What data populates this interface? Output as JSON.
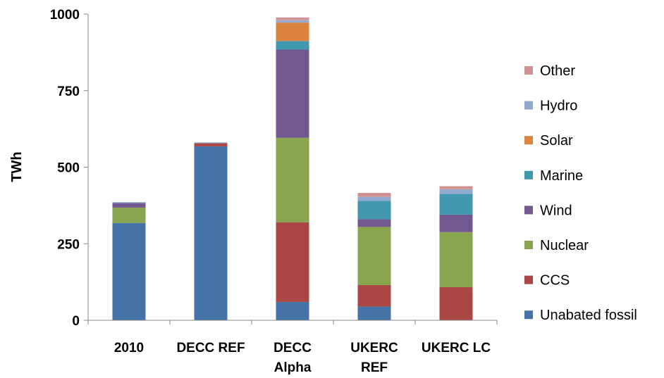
{
  "chart_data": {
    "type": "bar",
    "stacked": true,
    "categories": [
      [
        "2010"
      ],
      [
        "DECC REF"
      ],
      [
        "DECC",
        "Alpha"
      ],
      [
        "UKERC",
        "REF"
      ],
      [
        "UKERC LC"
      ]
    ],
    "ylabel": "TWh",
    "xlabel": "",
    "ylim": [
      0,
      1000
    ],
    "yticks": [
      "0",
      "250",
      "500",
      "750",
      "1000"
    ],
    "legend_position": "right",
    "grid": false,
    "series": [
      {
        "name": "Unabated fossil",
        "color": "#4572a7",
        "values": [
          318,
          568,
          60,
          45,
          0
        ]
      },
      {
        "name": "CCS",
        "color": "#aa4643",
        "values": [
          0,
          10,
          260,
          70,
          108
        ]
      },
      {
        "name": "Nuclear",
        "color": "#89a54e",
        "values": [
          50,
          0,
          276,
          190,
          180
        ]
      },
      {
        "name": "Wind",
        "color": "#71588f",
        "values": [
          15,
          0,
          288,
          25,
          57
        ]
      },
      {
        "name": "Marine",
        "color": "#4198af",
        "values": [
          0,
          0,
          28,
          60,
          68
        ]
      },
      {
        "name": "Solar",
        "color": "#db843d",
        "values": [
          0,
          0,
          60,
          0,
          0
        ]
      },
      {
        "name": "Hydro",
        "color": "#93a9cf",
        "values": [
          3,
          3,
          8,
          13,
          15
        ]
      },
      {
        "name": "Other",
        "color": "#d19392",
        "values": [
          0,
          0,
          9,
          13,
          10
        ]
      }
    ]
  }
}
